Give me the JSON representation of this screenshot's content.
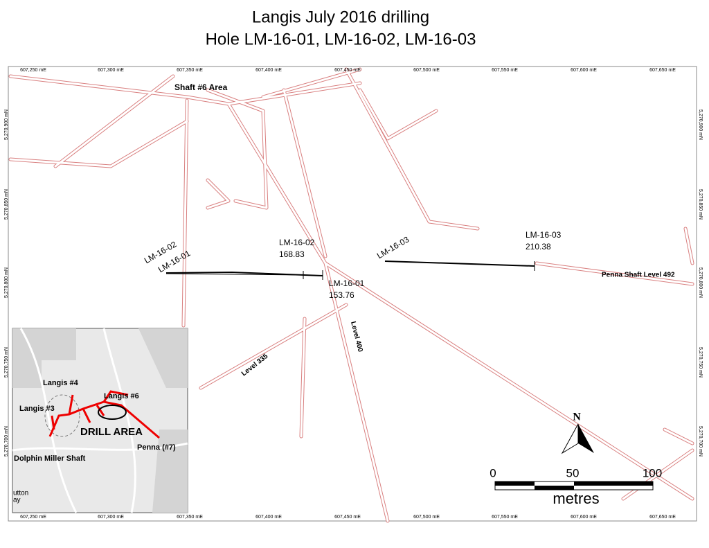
{
  "title": [
    "Langis July 2016 drilling",
    "Hole LM-16-01, LM-16-02, LM-16-03"
  ],
  "grid": {
    "eastings": [
      "607,250 mE",
      "607,300 mE",
      "607,350 mE",
      "607,400 mE",
      "607,450 mE",
      "607,500 mE",
      "607,550 mE",
      "607,600 mE",
      "607,650 mE"
    ],
    "northings": [
      "5,270,900 mN",
      "5,270,850 mN",
      "5,270,800 mN",
      "5,270,750 mN",
      "5,270,700 mN"
    ]
  },
  "map_labels": {
    "shaft6": "Shaft #6 Area",
    "penna": "Penna Shaft Level 492",
    "level335": "Level 335",
    "level400": "Level 400"
  },
  "holes": [
    {
      "collar": "LM-16-01",
      "end": "LM-16-01",
      "depth": "153.76"
    },
    {
      "collar": "LM-16-02",
      "end": "LM-16-02",
      "depth": "168.83"
    },
    {
      "collar": "LM-16-03",
      "end": "LM-16-03",
      "depth": "210.38"
    }
  ],
  "scale": {
    "ticks": [
      "0",
      "50",
      "100"
    ],
    "unit": "metres"
  },
  "north": "N",
  "inset": {
    "labels": [
      "Langis #4",
      "Langis #6",
      "Langis #3",
      "DRILL AREA",
      "Penna (#7)",
      "Dolphin Miller Shaft",
      "utton",
      "ay"
    ]
  }
}
